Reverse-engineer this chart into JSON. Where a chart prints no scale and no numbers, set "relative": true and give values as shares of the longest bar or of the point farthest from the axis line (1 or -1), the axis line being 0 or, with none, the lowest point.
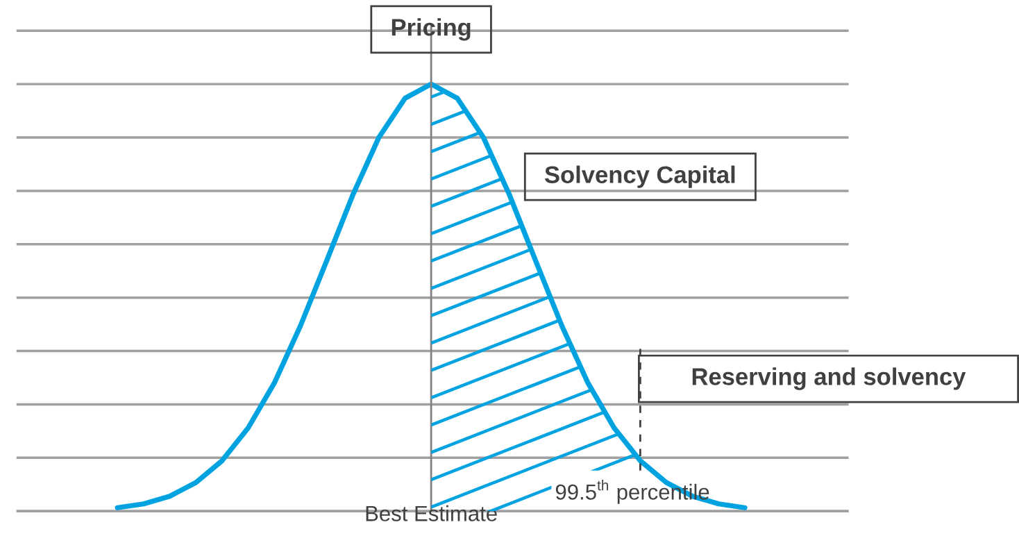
{
  "chart_data": {
    "type": "line",
    "relative": true,
    "categories": [
      null,
      null,
      null,
      null,
      null,
      null,
      null,
      null,
      null,
      null,
      null,
      null,
      null,
      null,
      null,
      null,
      null,
      null,
      null,
      null,
      null,
      null,
      null,
      null,
      null
    ],
    "series": [
      {
        "color": "#00a3e0",
        "values": [
          0.008,
          0.017,
          0.035,
          0.067,
          0.118,
          0.195,
          0.3,
          0.434,
          0.586,
          0.74,
          0.875,
          0.967,
          1,
          0.967,
          0.875,
          0.74,
          0.586,
          0.434,
          0.3,
          0.195,
          0.118,
          0.067,
          0.035,
          0.017,
          0.008
        ]
      }
    ],
    "grid": "y",
    "marker": "none",
    "annotations": [
      "Pricing",
      "Solvency Capital",
      "Reserving and solvency",
      "Best Estimate",
      "99.5$^{th}$ percentile"
    ]
  }
}
